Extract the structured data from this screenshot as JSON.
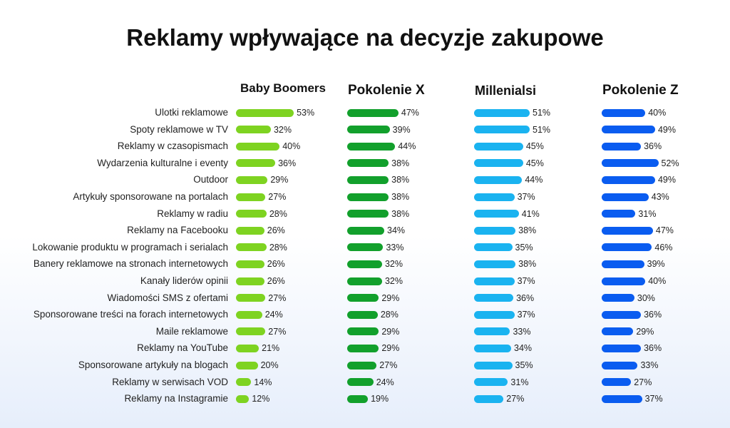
{
  "chart_data": {
    "type": "bar",
    "title": "Reklamy wpływające na decyzje zakupowe",
    "categories": [
      "Ulotki reklamowe",
      "Spoty reklamowe w TV",
      "Reklamy w czasopismach",
      "Wydarzenia kulturalne i eventy",
      "Outdoor",
      "Artykuły sponsorowane na portalach",
      "Reklamy w radiu",
      "Reklamy na Facebooku",
      "Lokowanie produktu w programach i serialach",
      "Banery reklamowe na stronach internetowych",
      "Kanały liderów opinii",
      "Wiadomości SMS z ofertami",
      "Sponsorowane treści na forach internetowych",
      "Maile reklamowe",
      "Reklamy na YouTube",
      "Sponsorowane artykuły na blogach",
      "Reklamy w serwisach VOD",
      "Reklamy na Instagramie"
    ],
    "series": [
      {
        "name": "Baby Boomers",
        "color": "#7ed321",
        "values": [
          53,
          32,
          40,
          36,
          29,
          27,
          28,
          26,
          28,
          26,
          26,
          27,
          24,
          27,
          21,
          20,
          14,
          12
        ]
      },
      {
        "name": "Pokolenie X",
        "color": "#12a02c",
        "values": [
          47,
          39,
          44,
          38,
          38,
          38,
          38,
          34,
          33,
          32,
          32,
          29,
          28,
          29,
          29,
          27,
          24,
          19
        ]
      },
      {
        "name": "Millenialsi",
        "color": "#1ab3f0",
        "values": [
          51,
          51,
          45,
          45,
          44,
          37,
          41,
          38,
          35,
          38,
          37,
          36,
          37,
          33,
          34,
          35,
          31,
          27
        ]
      },
      {
        "name": "Pokolenie Z",
        "color": "#0a5cf0",
        "values": [
          40,
          49,
          36,
          52,
          49,
          43,
          31,
          47,
          46,
          39,
          40,
          30,
          36,
          29,
          36,
          33,
          27,
          37
        ]
      }
    ],
    "value_suffix": "%",
    "legend": "column headers above each series",
    "grid": false
  }
}
